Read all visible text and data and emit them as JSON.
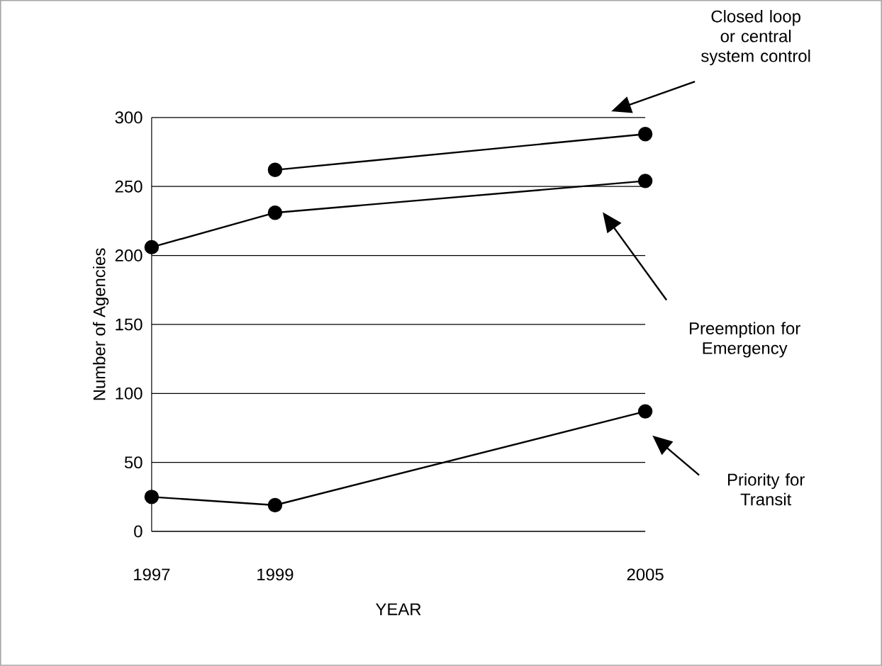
{
  "chart_data": {
    "type": "line",
    "xlabel": "YEAR",
    "ylabel": "Number of Agencies",
    "x": [
      1997,
      1999,
      2005
    ],
    "xlim": [
      1997,
      2005
    ],
    "xticks": [
      1997,
      1999,
      2005
    ],
    "ylim": [
      0,
      300
    ],
    "yticks": [
      0,
      50,
      100,
      150,
      200,
      250,
      300
    ],
    "grid": "y",
    "marker": "circle",
    "line_style": "solid",
    "series": [
      {
        "color": "#000000",
        "values": [
          null,
          262,
          288
        ]
      },
      {
        "color": "#000000",
        "values": [
          206,
          231,
          254
        ]
      },
      {
        "color": "#000000",
        "values": [
          25,
          19,
          87
        ]
      }
    ],
    "annotations": [
      "Closed loop or central system control",
      "Preemption for Emergency",
      "Priority for Transit"
    ]
  }
}
